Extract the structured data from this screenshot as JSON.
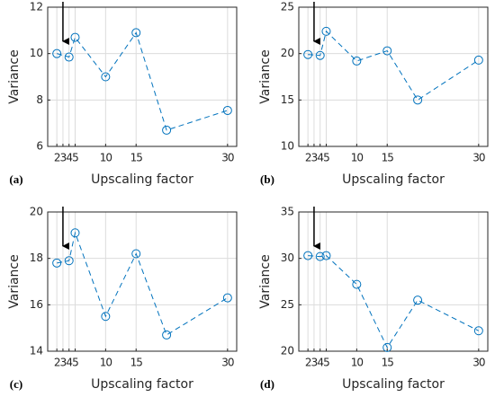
{
  "chart_data": [
    {
      "type": "line",
      "panel": "(a)",
      "ylabel": "Variance",
      "xlabel": "Upscaling factor",
      "x": [
        2,
        4,
        5,
        10,
        15,
        20,
        30
      ],
      "series": [
        {
          "color": "#0072bd",
          "values": [
            10,
            9.85,
            10.7,
            9.0,
            10.9,
            6.7,
            7.55
          ]
        }
      ],
      "xlim": [
        0.5,
        31.5
      ],
      "xticks": [
        2,
        3,
        4,
        5,
        10,
        15,
        30
      ],
      "ylim": [
        6,
        12
      ],
      "yticks": [
        6,
        8,
        10,
        12
      ],
      "grid": true,
      "arrow_x": 3
    },
    {
      "type": "line",
      "panel": "(b)",
      "ylabel": "Variance",
      "xlabel": "Upscaling factor",
      "x": [
        2,
        4,
        5,
        10,
        15,
        20,
        30
      ],
      "series": [
        {
          "color": "#0072bd",
          "values": [
            19.9,
            19.8,
            22.4,
            19.2,
            20.3,
            15.0,
            19.3
          ]
        }
      ],
      "xlim": [
        0.5,
        31.5
      ],
      "xticks": [
        2,
        3,
        4,
        5,
        10,
        15,
        30
      ],
      "ylim": [
        10,
        25
      ],
      "yticks": [
        10,
        15,
        20,
        25
      ],
      "grid": true,
      "arrow_x": 3
    },
    {
      "type": "line",
      "panel": "(c)",
      "ylabel": "Variance",
      "xlabel": "Upscaling factor",
      "x": [
        2,
        4,
        5,
        10,
        15,
        20,
        30
      ],
      "series": [
        {
          "color": "#0072bd",
          "values": [
            17.8,
            17.9,
            19.1,
            15.5,
            18.2,
            14.7,
            16.3
          ]
        }
      ],
      "xlim": [
        0.5,
        31.5
      ],
      "xticks": [
        2,
        3,
        4,
        5,
        10,
        15,
        30
      ],
      "ylim": [
        14,
        20
      ],
      "yticks": [
        14,
        16,
        18,
        20
      ],
      "grid": true,
      "arrow_x": 3
    },
    {
      "type": "line",
      "panel": "(d)",
      "ylabel": "Variance",
      "xlabel": "Upscaling factor",
      "x": [
        2,
        4,
        5,
        10,
        15,
        20,
        30
      ],
      "series": [
        {
          "color": "#0072bd",
          "values": [
            30.3,
            30.2,
            30.3,
            27.2,
            20.4,
            25.5,
            22.2
          ]
        }
      ],
      "xlim": [
        0.5,
        31.5
      ],
      "xticks": [
        2,
        3,
        4,
        5,
        10,
        15,
        30
      ],
      "ylim": [
        20,
        35
      ],
      "yticks": [
        20,
        25,
        30,
        35
      ],
      "grid": true,
      "arrow_x": 3
    }
  ]
}
